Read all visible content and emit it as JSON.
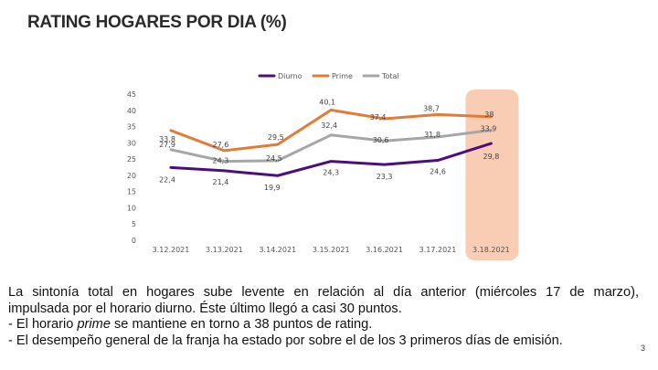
{
  "title": "RATING HOGARES POR DIA (%)",
  "chart_data": {
    "type": "line",
    "categories": [
      "3.12.2021",
      "3.13.2021",
      "3.14.2021",
      "3.15.2021",
      "3.16.2021",
      "3.17.2021",
      "3.18.2021"
    ],
    "series": [
      {
        "name": "Diurno",
        "values": [
          22.4,
          21.4,
          19.9,
          24.3,
          23.3,
          24.6,
          29.8
        ],
        "labels": [
          "22,4",
          "21,4",
          "19,9",
          "24,3",
          "23,3",
          "24,6",
          "29,8"
        ],
        "color": "#4b0e7a"
      },
      {
        "name": "Prime",
        "values": [
          33.8,
          27.6,
          29.5,
          40.1,
          37.4,
          38.7,
          38
        ],
        "labels": [
          "33,8",
          "27,6",
          "29,5",
          "40,1",
          "37,4",
          "38,7",
          "38"
        ],
        "color": "#e07b3a"
      },
      {
        "name": "Total",
        "values": [
          27.9,
          24.3,
          24.5,
          32.4,
          30.6,
          31.8,
          33.9
        ],
        "labels": [
          "27,9",
          "24,3",
          "24,5",
          "32,4",
          "30,6",
          "31,8",
          "33,9"
        ],
        "color": "#a6a6a6"
      }
    ],
    "yticks": [
      "0",
      "5",
      "10",
      "15",
      "20",
      "25",
      "30",
      "35",
      "40",
      "45"
    ],
    "ylim": [
      0,
      45
    ],
    "legend_position": "top-center",
    "highlight_category": "3.18.2021",
    "highlight_color": "#f9ccb4"
  },
  "body": {
    "line1": "La sintonía total en hogares sube levente en relación al día anterior (miércoles 17 de marzo),",
    "line2": "impulsada por el horario diurno. Éste último llegó a casi 30 puntos.",
    "line3_prefix": "- El horario ",
    "line3_em": "prime",
    "line3_suffix": " se mantiene en torno a 38 puntos de rating.",
    "line4": "- El desempeño general de la franja ha estado por sobre el de los 3 primeros días de emisión."
  },
  "page_number": "3"
}
